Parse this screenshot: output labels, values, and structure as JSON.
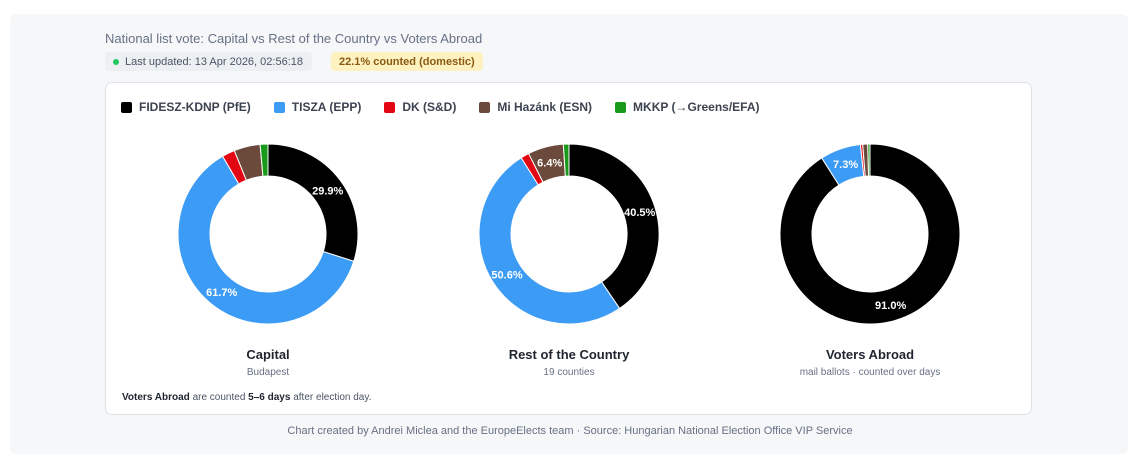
{
  "header": {
    "title": "National list vote: Capital vs Rest of the Country vs Voters Abroad",
    "last_updated": "Last updated: 13 Apr 2026, 02:56:18",
    "counted": "22.1% counted (domestic)"
  },
  "chart_data": {
    "type": "pie",
    "legend_position": "top-left",
    "legend": [
      {
        "name": "FIDESZ-KDNP (PfE)",
        "color": "#000000"
      },
      {
        "name": "TISZA (EPP)",
        "color": "#3b9bf5"
      },
      {
        "name": "DK (S&D)",
        "color": "#e30613"
      },
      {
        "name": "Mi Hazánk (ESN)",
        "color": "#6b4a3c"
      },
      {
        "name": "MKKP (→Greens/EFA)",
        "color": "#1a9a1a"
      }
    ],
    "charts": [
      {
        "title": "Capital",
        "subtitle": "Budapest",
        "slices": [
          {
            "party": "FIDESZ-KDNP (PfE)",
            "value": 29.9,
            "label": "29.9%"
          },
          {
            "party": "TISZA (EPP)",
            "value": 61.7,
            "label": "61.7%"
          },
          {
            "party": "DK (S&D)",
            "value": 2.3,
            "label": ""
          },
          {
            "party": "Mi Hazánk (ESN)",
            "value": 4.7,
            "label": ""
          },
          {
            "party": "MKKP (→Greens/EFA)",
            "value": 1.4,
            "label": ""
          }
        ]
      },
      {
        "title": "Rest of the Country",
        "subtitle": "19 counties",
        "slices": [
          {
            "party": "FIDESZ-KDNP (PfE)",
            "value": 40.5,
            "label": "40.5%"
          },
          {
            "party": "TISZA (EPP)",
            "value": 50.6,
            "label": "50.6%"
          },
          {
            "party": "DK (S&D)",
            "value": 1.5,
            "label": ""
          },
          {
            "party": "Mi Hazánk (ESN)",
            "value": 6.4,
            "label": "6.4%"
          },
          {
            "party": "MKKP (→Greens/EFA)",
            "value": 1.0,
            "label": ""
          }
        ]
      },
      {
        "title": "Voters Abroad",
        "subtitle": "mail ballots · counted over days",
        "slices": [
          {
            "party": "FIDESZ-KDNP (PfE)",
            "value": 91.0,
            "label": "91.0%"
          },
          {
            "party": "TISZA (EPP)",
            "value": 7.3,
            "label": "7.3%"
          },
          {
            "party": "DK (S&D)",
            "value": 0.4,
            "label": ""
          },
          {
            "party": "Mi Hazánk (ESN)",
            "value": 0.9,
            "label": ""
          },
          {
            "party": "MKKP (→Greens/EFA)",
            "value": 0.4,
            "label": ""
          }
        ]
      }
    ]
  },
  "note": {
    "strong1": "Voters Abroad",
    "text1": " are counted ",
    "strong2": "5–6 days",
    "text2": " after election day."
  },
  "footer": "Chart created by Andrei Miclea and the EuropeElects team · Source: Hungarian National Election Office VIP Service"
}
